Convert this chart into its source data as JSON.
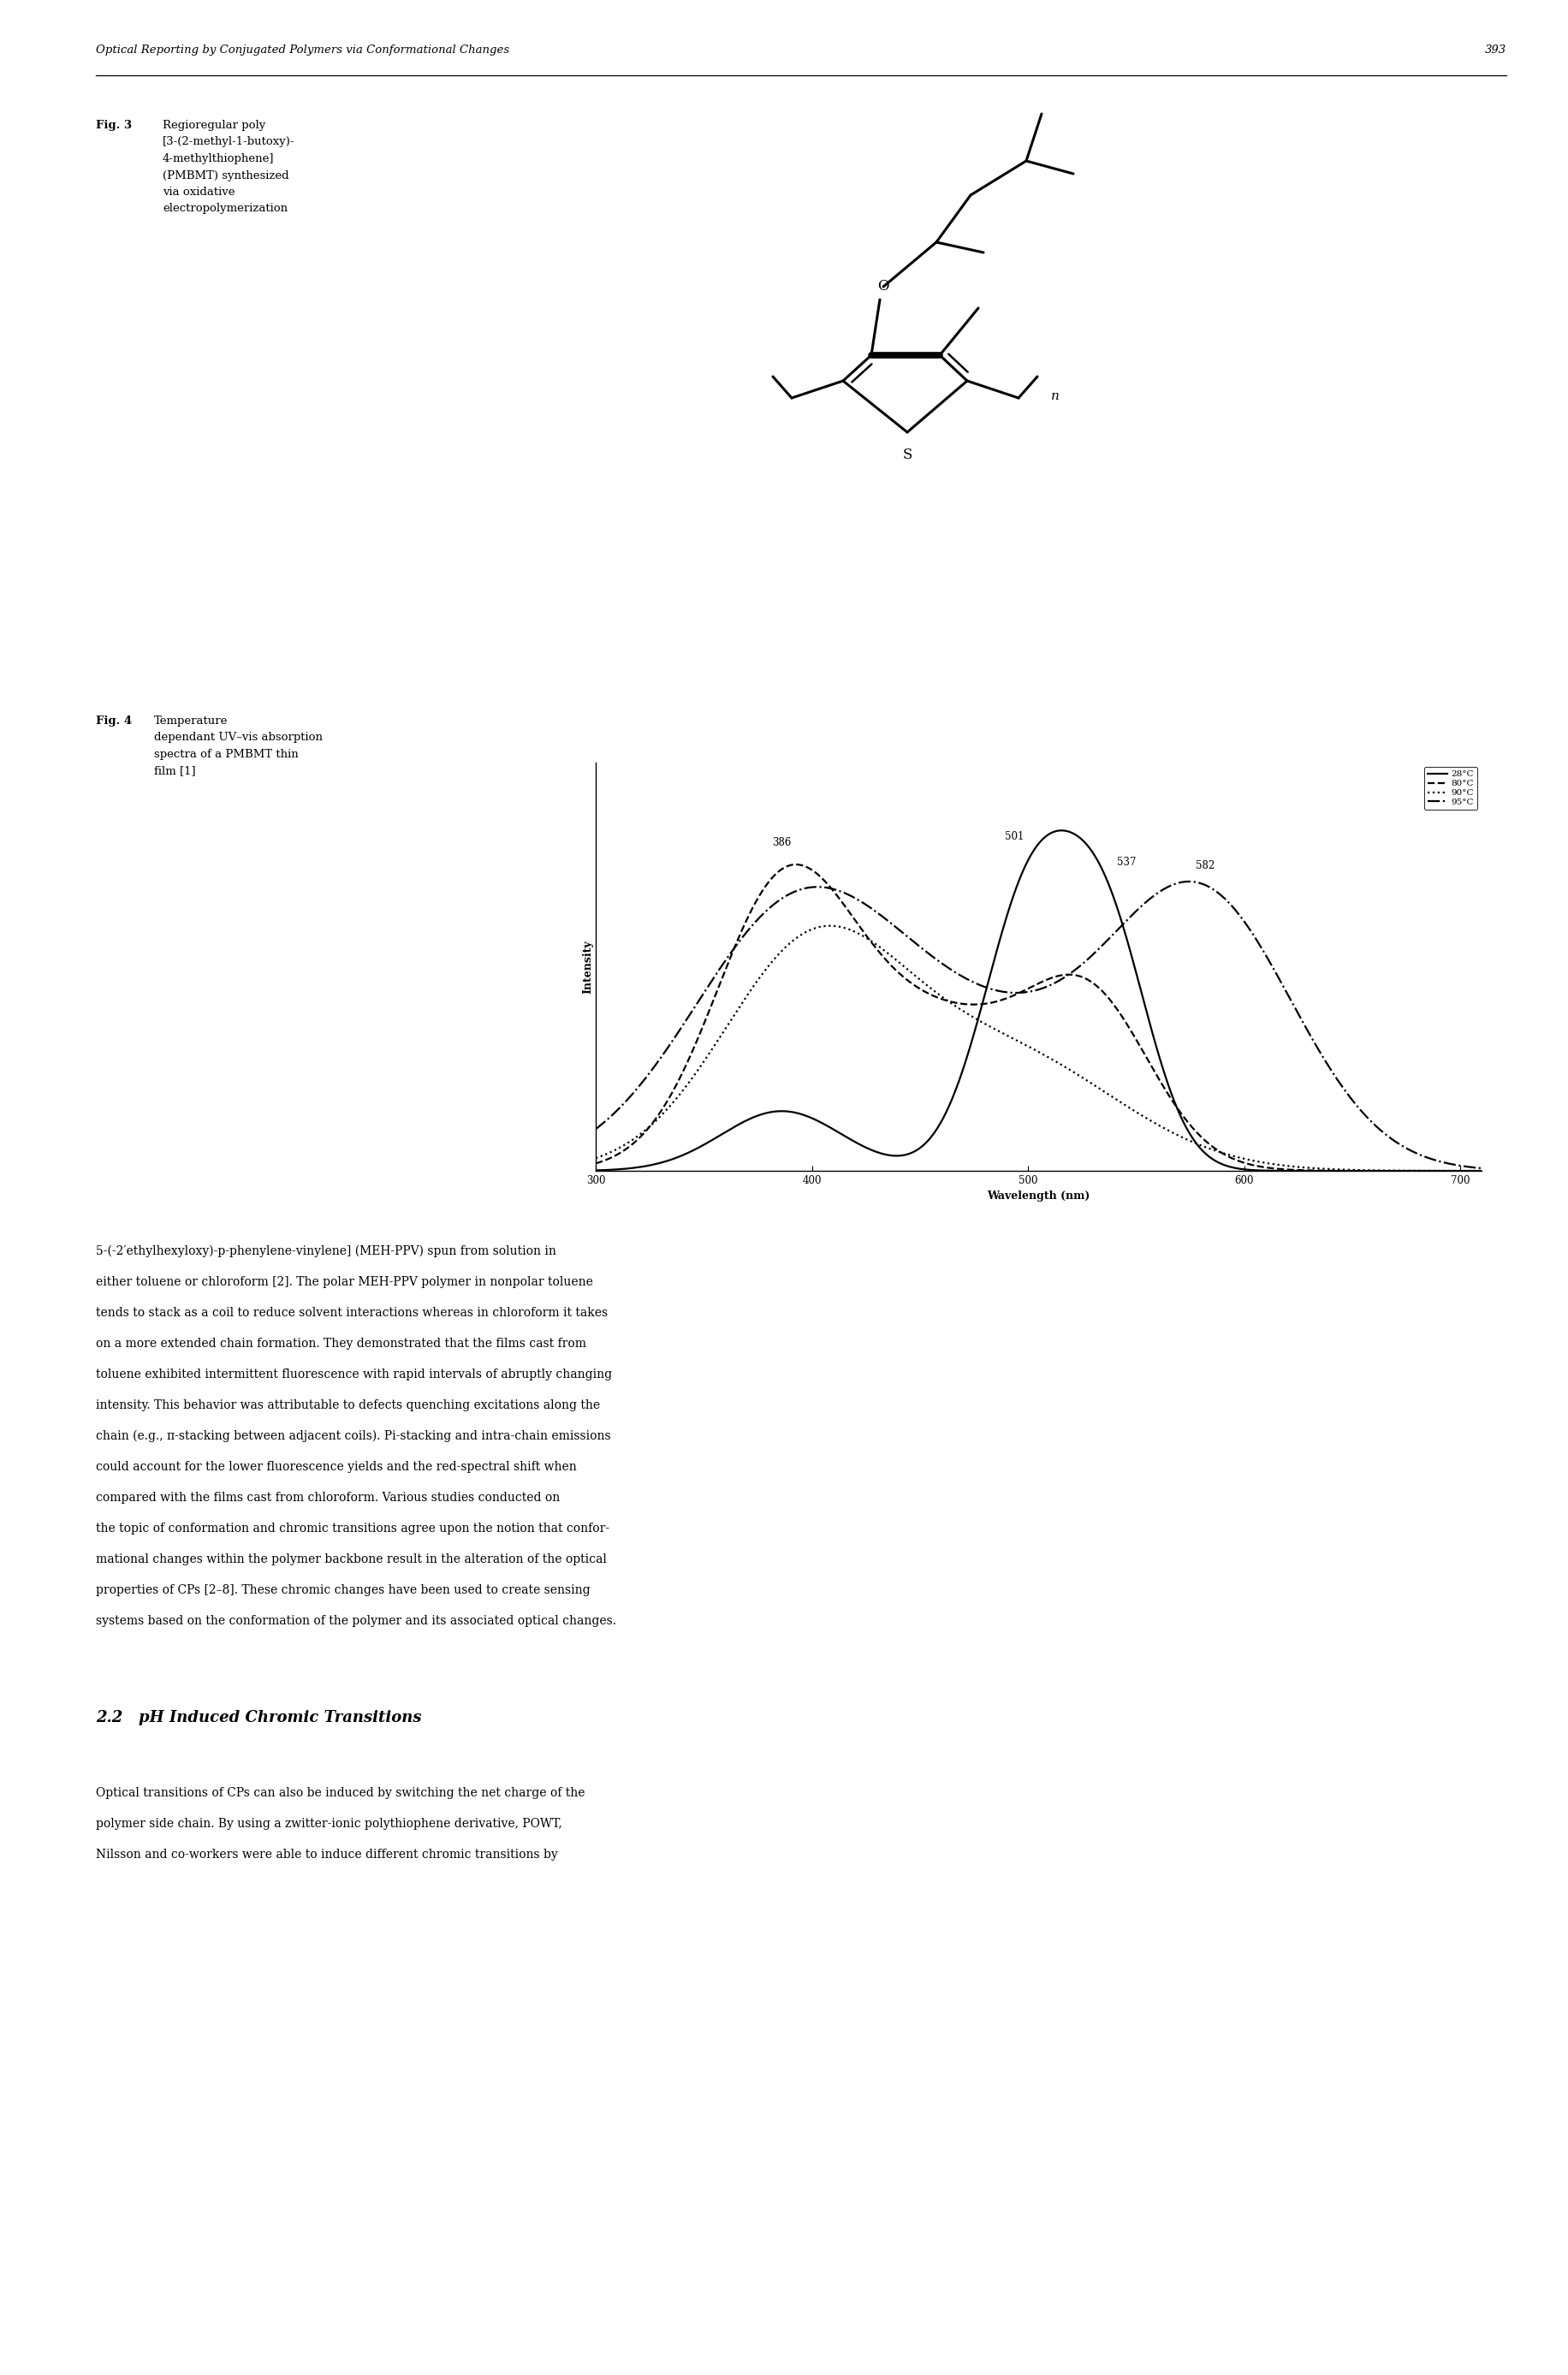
{
  "header_text": "Optical Reporting by Conjugated Polymers via Conformational Changes",
  "page_number": "393",
  "fig3_bold": "Fig. 3",
  "fig3_normal": "Regioregular poly\n[3-(2-methyl-1-butoxy)-\n4-methylthiophene]\n(PMBMT) synthesized\nvia oxidative\nelectropolymerization",
  "fig4_bold": "Fig. 4",
  "fig4_normal": "Temperature\ndependant UV–vis absorption\nspectra of a PMBMT thin\nfilm [1]",
  "spectrum_xlabel": "Wavelength (nm)",
  "spectrum_ylabel": "Intensity",
  "spectrum_xticks": [
    300,
    400,
    500,
    600,
    700
  ],
  "spectrum_xlim": [
    300,
    710
  ],
  "legend_labels": [
    "28°C",
    "80°C",
    "90°C",
    "95°C"
  ],
  "peak_labels": [
    "386",
    "501",
    "537",
    "582"
  ],
  "body_lines": [
    "5-(-2′ethylhexyloxy)-p-phenylene-vinylene] (MEH-PPV) spun from solution in",
    "either toluene or chloroform [2]. The polar MEH-PPV polymer in nonpolar toluene",
    "tends to stack as a coil to reduce solvent interactions whereas in chloroform it takes",
    "on a more extended chain formation. They demonstrated that the films cast from",
    "toluene exhibited intermittent fluorescence with rapid intervals of abruptly changing",
    "intensity. This behavior was attributable to defects quenching excitations along the",
    "chain (e.g., π-stacking between adjacent coils). Pi-stacking and intra-chain emissions",
    "could account for the lower fluorescence yields and the red-spectral shift when",
    "compared with the films cast from chloroform. Various studies conducted on",
    "the topic of conformation and chromic transitions agree upon the notion that confor-",
    "mational changes within the polymer backbone result in the alteration of the optical",
    "properties of CPs [2–8]. These chromic changes have been used to create sensing",
    "systems based on the conformation of the polymer and its associated optical changes."
  ],
  "section_heading": "2.2   pH Induced Chromic Transitions",
  "section_lines": [
    "Optical transitions of CPs can also be induced by switching the net charge of the",
    "polymer side chain. By using a zwitter-ionic polythiophene derivative, POWT,",
    "Nilsson and co-workers were able to induce different chromic transitions by"
  ],
  "background_color": "#ffffff",
  "text_color": "#000000"
}
